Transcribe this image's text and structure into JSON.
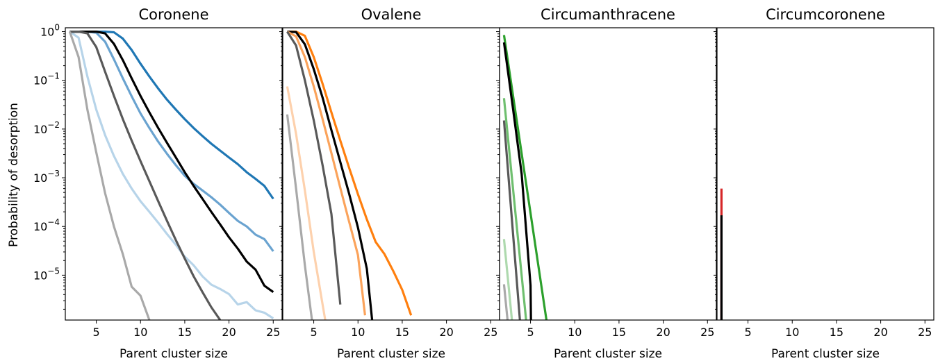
{
  "figure": {
    "ylabel": "Probability of desorption",
    "xlabel": "Parent cluster size",
    "yscale": "log",
    "ylim": [
      1.2e-06,
      1.2
    ],
    "xlim": [
      1.5,
      26
    ],
    "xticks": [
      5,
      10,
      15,
      20,
      25
    ],
    "yticks": [
      {
        "value": 1,
        "base": "10",
        "exp": "0"
      },
      {
        "value": 0.1,
        "base": "10",
        "exp": "−1"
      },
      {
        "value": 0.01,
        "base": "10",
        "exp": "−2"
      },
      {
        "value": 0.001,
        "base": "10",
        "exp": "−3"
      },
      {
        "value": 0.0001,
        "base": "10",
        "exp": "−4"
      },
      {
        "value": 1e-05,
        "base": "10",
        "exp": "−5"
      }
    ]
  },
  "chart_data": [
    {
      "type": "line",
      "title": "Coronene",
      "series": [
        {
          "color": "#1f77b4",
          "x": [
            2,
            3,
            4,
            5,
            6,
            7,
            8,
            9,
            10,
            11,
            12,
            13,
            14,
            15,
            16,
            17,
            18,
            19,
            20,
            21,
            22,
            23,
            24,
            25
          ],
          "y": [
            1.0,
            1.0,
            1.0,
            1.0,
            1.0,
            0.97,
            0.72,
            0.42,
            0.22,
            0.12,
            0.068,
            0.04,
            0.025,
            0.016,
            0.0105,
            0.0072,
            0.005,
            0.0036,
            0.0026,
            0.0019,
            0.0013,
            0.00095,
            0.00068,
            0.00037
          ]
        },
        {
          "color": "#6aa3d0",
          "x": [
            2,
            3,
            4,
            5,
            6,
            7,
            8,
            9,
            10,
            11,
            12,
            13,
            14,
            15,
            16,
            17,
            18,
            19,
            20,
            21,
            22,
            23,
            24,
            25
          ],
          "y": [
            1.0,
            1.0,
            1.0,
            0.95,
            0.62,
            0.27,
            0.11,
            0.047,
            0.021,
            0.0105,
            0.0055,
            0.0031,
            0.0018,
            0.0011,
            0.00075,
            0.00055,
            0.0004,
            0.00028,
            0.00019,
            0.00013,
            0.0001,
            6.8e-05,
            5.5e-05,
            3.1e-05
          ]
        },
        {
          "color": "#b7d4e9",
          "x": [
            2,
            3,
            4,
            5,
            6,
            7,
            8,
            9,
            10,
            11,
            12,
            13,
            14,
            15,
            16,
            17,
            18,
            19,
            20,
            21,
            22,
            23,
            24,
            25
          ],
          "y": [
            1.0,
            0.75,
            0.12,
            0.025,
            0.0075,
            0.0028,
            0.0012,
            0.0006,
            0.00033,
            0.0002,
            0.00012,
            7e-05,
            4.2e-05,
            2.4e-05,
            1.6e-05,
            9.5e-06,
            6.4e-06,
            5.2e-06,
            4.1e-06,
            2.5e-06,
            2.8e-06,
            1.9e-06,
            1.7e-06,
            1.3e-06
          ]
        },
        {
          "color": "#000000",
          "x": [
            2,
            3,
            4,
            5,
            6,
            7,
            8,
            9,
            10,
            11,
            12,
            13,
            14,
            15,
            16,
            17,
            18,
            19,
            20,
            21,
            22,
            23,
            24,
            25
          ],
          "y": [
            1.0,
            1.0,
            1.0,
            1.0,
            0.92,
            0.56,
            0.26,
            0.11,
            0.048,
            0.022,
            0.0105,
            0.0052,
            0.0026,
            0.0013,
            0.00068,
            0.00037,
            0.0002,
            0.00011,
            6e-05,
            3.5e-05,
            1.9e-05,
            1.3e-05,
            6.1e-06,
            4.5e-06
          ]
        },
        {
          "color": "#595959",
          "x": [
            2,
            3,
            4,
            5,
            6,
            7,
            8,
            9,
            10,
            11,
            12,
            13,
            14,
            15,
            16,
            17,
            18,
            19
          ],
          "y": [
            1.0,
            1.0,
            0.92,
            0.48,
            0.15,
            0.048,
            0.016,
            0.0058,
            0.0022,
            0.00085,
            0.00033,
            0.00013,
            5.2e-05,
            2.2e-05,
            9.5e-06,
            4.5e-06,
            2.2e-06,
            1.2e-06
          ]
        },
        {
          "color": "#a9a9a9",
          "x": [
            2,
            3,
            4,
            5,
            6,
            7,
            8,
            9,
            10,
            11
          ],
          "y": [
            1.0,
            0.3,
            0.025,
            0.0033,
            0.00048,
            0.0001,
            2.7e-05,
            5.8e-06,
            3.8e-06,
            1.2e-06
          ]
        }
      ]
    },
    {
      "type": "line",
      "title": "Ovalene",
      "series": [
        {
          "color": "#ff7f0e",
          "x": [
            2,
            3,
            4,
            5,
            6,
            7,
            8,
            9,
            10,
            11,
            12,
            13,
            14,
            15,
            16
          ],
          "y": [
            1.0,
            1.0,
            0.82,
            0.3,
            0.085,
            0.022,
            0.0058,
            0.0016,
            0.00046,
            0.00014,
            4.8e-05,
            2.7e-05,
            1.2e-05,
            5e-06,
            1.5e-06
          ]
        },
        {
          "color": "#000000",
          "x": [
            2,
            3,
            4,
            5,
            6,
            7,
            8,
            9,
            10,
            11,
            11.6
          ],
          "y": [
            1.0,
            0.98,
            0.55,
            0.17,
            0.044,
            0.0095,
            0.0021,
            0.00047,
            9.5e-05,
            1.35e-05,
            1.2e-06
          ]
        },
        {
          "color": "#fba35b",
          "x": [
            2,
            3,
            4,
            5,
            6,
            7,
            8,
            9,
            10,
            10.8
          ],
          "y": [
            1.0,
            0.8,
            0.3,
            0.075,
            0.016,
            0.0032,
            0.00062,
            0.000125,
            2.6e-05,
            1.5e-06
          ]
        },
        {
          "color": "#595959",
          "x": [
            2,
            3,
            4,
            5,
            6,
            7,
            8
          ],
          "y": [
            1.0,
            0.52,
            0.1,
            0.015,
            0.0018,
            0.00018,
            2.5e-06
          ]
        },
        {
          "color": "#fdd1ad",
          "x": [
            2,
            3,
            4,
            5,
            6,
            6.3
          ],
          "y": [
            0.075,
            0.008,
            0.00055,
            3e-05,
            2.5e-06,
            1.2e-06
          ]
        },
        {
          "color": "#a9a9a9",
          "x": [
            2,
            3,
            4,
            4.8
          ],
          "y": [
            0.02,
            0.0006,
            1.6e-05,
            1.2e-06
          ]
        }
      ]
    },
    {
      "type": "line",
      "title": "Circumanthracene",
      "series": [
        {
          "color": "#2ca02c",
          "x": [
            2,
            6.8
          ],
          "y": [
            0.85,
            1.2e-06
          ]
        },
        {
          "color": "#000000",
          "x": [
            2,
            3,
            4,
            5,
            5.05
          ],
          "y": [
            0.6,
            0.028,
            0.0012,
            6.2e-06,
            1.2e-06
          ]
        },
        {
          "color": "#6fbf6f",
          "x": [
            2,
            4.5
          ],
          "y": [
            0.043,
            1.2e-06
          ]
        },
        {
          "color": "#595959",
          "x": [
            2,
            3.8
          ],
          "y": [
            0.015,
            1.2e-06
          ]
        },
        {
          "color": "#aed9ae",
          "x": [
            2,
            2.9
          ],
          "y": [
            5.5e-05,
            1.2e-06
          ]
        },
        {
          "color": "#a9a9a9",
          "x": [
            2,
            2.4
          ],
          "y": [
            6.5e-06,
            1.2e-06
          ]
        }
      ]
    },
    {
      "type": "line",
      "title": "Circumcoronene",
      "series": [
        {
          "color": "#d62728",
          "x": [
            2,
            2
          ],
          "y": [
            0.0006,
            1.2e-06
          ]
        },
        {
          "color": "#000000",
          "x": [
            2,
            2
          ],
          "y": [
            0.00017,
            1.2e-06
          ]
        }
      ]
    }
  ]
}
